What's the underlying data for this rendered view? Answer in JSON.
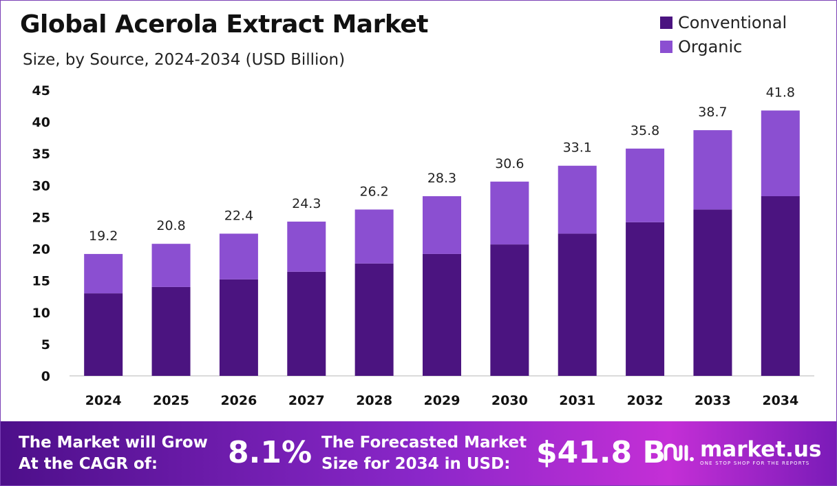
{
  "chart_data": {
    "type": "bar",
    "stacked": true,
    "title": "Global Acerola Extract Market",
    "subtitle": "Size, by Source, 2024-2034 (USD Billion)",
    "categories": [
      "2024",
      "2025",
      "2026",
      "2027",
      "2028",
      "2029",
      "2030",
      "2031",
      "2032",
      "2033",
      "2034"
    ],
    "series": [
      {
        "name": "Conventional",
        "color": "#4b1480",
        "values": [
          13.0,
          14.0,
          15.2,
          16.4,
          17.7,
          19.2,
          20.7,
          22.4,
          24.2,
          26.2,
          28.3
        ]
      },
      {
        "name": "Organic",
        "color": "#8b4fd1",
        "values": [
          6.2,
          6.8,
          7.2,
          7.9,
          8.5,
          9.1,
          9.9,
          10.7,
          11.6,
          12.5,
          13.5
        ]
      }
    ],
    "totals": [
      19.2,
      20.8,
      22.4,
      24.3,
      26.2,
      28.3,
      30.6,
      33.1,
      35.8,
      38.7,
      41.8
    ],
    "total_labels": [
      "19.2",
      "20.8",
      "22.4",
      "24.3",
      "26.2",
      "28.3",
      "30.6",
      "33.1",
      "35.8",
      "38.7",
      "41.8"
    ],
    "yticks": [
      "0",
      "5",
      "10",
      "15",
      "20",
      "25",
      "30",
      "35",
      "40",
      "45"
    ],
    "ylim": [
      0,
      45
    ],
    "grid": false,
    "legend_position": "top-right"
  },
  "banner": {
    "cagr_label_line1": "The Market will Grow",
    "cagr_label_line2": "At the CAGR of:",
    "cagr_value": "8.1%",
    "forecast_label_line1": "The Forecasted Market",
    "forecast_label_line2": "Size for 2034 in USD:",
    "forecast_value": "$41.8 B",
    "brand_name": "market.us",
    "brand_tagline": "ONE STOP SHOP FOR THE REPORTS",
    "brand_icon": "market-us-logo-icon"
  }
}
